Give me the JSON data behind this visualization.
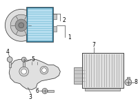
{
  "bg_color": "#ffffff",
  "highlight_color": "#b8dff0",
  "line_color": "#444444",
  "component_color": "#e0e0e0",
  "mid_color": "#c8c8c8",
  "dark_color": "#999999",
  "shadow_color": "#b0b0b0"
}
